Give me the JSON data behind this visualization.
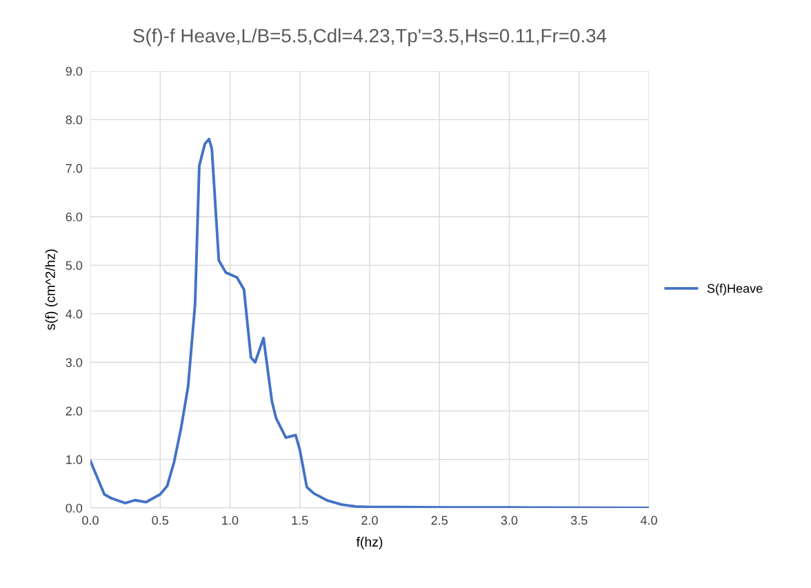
{
  "chart_data": {
    "type": "line",
    "title": "S(f)-f Heave,L/B=5.5,Cdl=4.23,Tp'=3.5,Hs=0.11,Fr=0.34",
    "xlabel": "f(hz)",
    "ylabel": "s(f) (cm^2/hz)",
    "x": [
      0,
      0.1,
      0.15,
      0.25,
      0.32,
      0.4,
      0.5,
      0.55,
      0.6,
      0.65,
      0.7,
      0.75,
      0.78,
      0.82,
      0.85,
      0.87,
      0.92,
      0.97,
      1.05,
      1.1,
      1.15,
      1.18,
      1.24,
      1.3,
      1.33,
      1.4,
      1.47,
      1.5,
      1.55,
      1.6,
      1.7,
      1.8,
      1.9,
      2.0,
      2.2,
      2.5,
      3.0,
      3.5,
      4.0
    ],
    "series": [
      {
        "name": "S(f)Heave",
        "color": "#4472c4",
        "values": [
          0.97,
          0.28,
          0.2,
          0.1,
          0.16,
          0.12,
          0.28,
          0.45,
          0.95,
          1.65,
          2.5,
          4.2,
          7.05,
          7.5,
          7.6,
          7.4,
          5.1,
          4.85,
          4.75,
          4.5,
          3.1,
          3.0,
          3.5,
          2.2,
          1.85,
          1.45,
          1.5,
          1.2,
          0.43,
          0.3,
          0.15,
          0.07,
          0.03,
          0.02,
          0.02,
          0.01,
          0.01,
          0.005,
          0
        ]
      }
    ],
    "xlim": [
      0,
      4
    ],
    "xticks": [
      {
        "value": 0,
        "label": "0.0"
      },
      {
        "value": 0.5,
        "label": "0.5"
      },
      {
        "value": 1,
        "label": "1.0"
      },
      {
        "value": 1.5,
        "label": "1.5"
      },
      {
        "value": 2,
        "label": "2.0"
      },
      {
        "value": 2.5,
        "label": "2.5"
      },
      {
        "value": 3,
        "label": "3.0"
      },
      {
        "value": 3.5,
        "label": "3.5"
      },
      {
        "value": 4,
        "label": "4.0"
      }
    ],
    "ylim": [
      0,
      9
    ],
    "yticks": [
      {
        "value": 0,
        "label": "0.0"
      },
      {
        "value": 1,
        "label": "1.0"
      },
      {
        "value": 2,
        "label": "2.0"
      },
      {
        "value": 3,
        "label": "3.0"
      },
      {
        "value": 4,
        "label": "4.0"
      },
      {
        "value": 5,
        "label": "5.0"
      },
      {
        "value": 6,
        "label": "6.0"
      },
      {
        "value": 7,
        "label": "7.0"
      },
      {
        "value": 8,
        "label": "8.0"
      },
      {
        "value": 9,
        "label": "9.0"
      }
    ],
    "grid": true,
    "legend": "right",
    "marker": "none",
    "line_style": "solid"
  }
}
